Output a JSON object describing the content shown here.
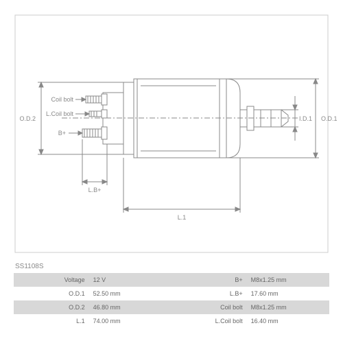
{
  "part_number": "SS1108S",
  "diagram": {
    "type": "engineering-drawing",
    "stroke_color": "#888888",
    "stroke_width": 1,
    "font_size": 9,
    "text_color": "#888888",
    "background": "#ffffff",
    "labels": {
      "od1": "O.D.1",
      "od2": "O.D.2",
      "id1": "I.D.1",
      "l1": "L.1",
      "lb_plus": "L.B+",
      "b_plus": "B+",
      "coil_bolt": "Coil bolt",
      "l_coil_bolt": "L.Coil bolt"
    }
  },
  "specs": {
    "rows": [
      {
        "shaded": true,
        "left_label": "Voltage",
        "left_value": "12 V",
        "right_label": "B+",
        "right_value": "M8x1.25 mm"
      },
      {
        "shaded": false,
        "left_label": "O.D.1",
        "left_value": "52.50 mm",
        "right_label": "L.B+",
        "right_value": "17.60 mm"
      },
      {
        "shaded": true,
        "left_label": "O.D.2",
        "left_value": "46.80 mm",
        "right_label": "Coil bolt",
        "right_value": "M8x1.25 mm"
      },
      {
        "shaded": false,
        "left_label": "L.1",
        "left_value": "74.00 mm",
        "right_label": "L.Coil bolt",
        "right_value": "16.40 mm"
      }
    ],
    "shaded_bg": "#d8d8d8",
    "plain_bg": "#ffffff",
    "text_color": "#666666",
    "font_size": 9
  }
}
